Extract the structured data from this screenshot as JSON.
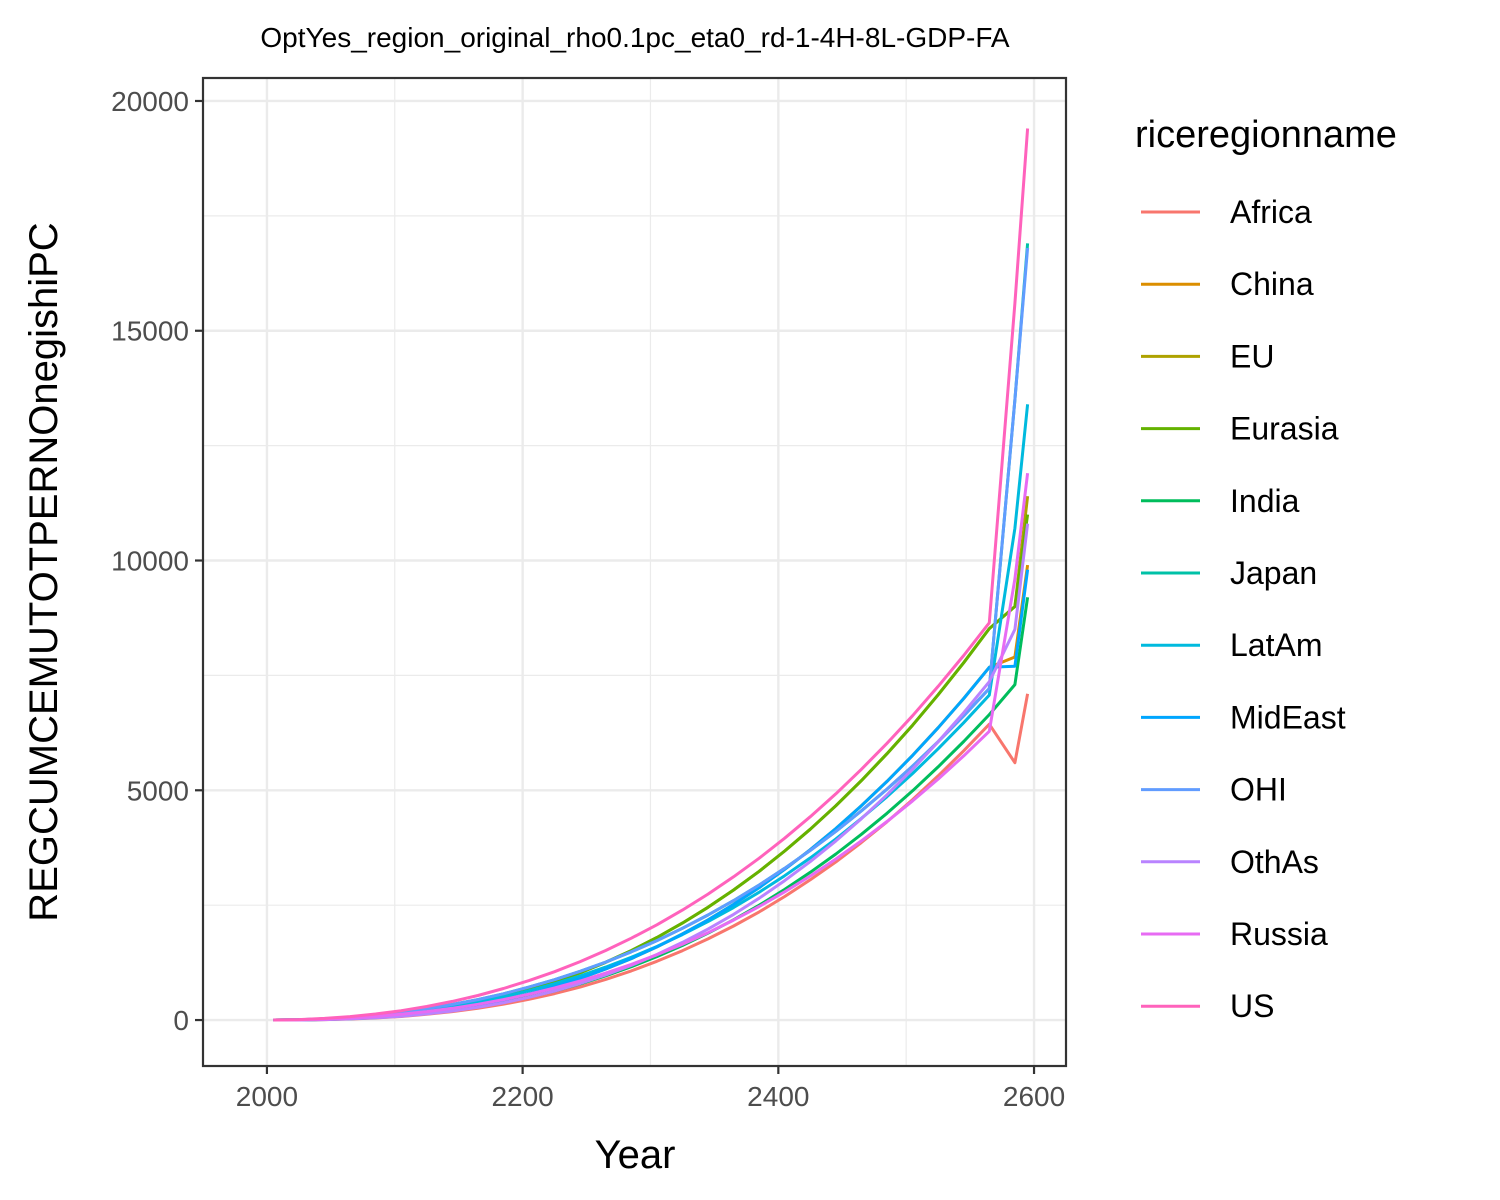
{
  "chart_data": {
    "type": "line",
    "title": "OptYes_region_original_rho0.1pc_eta0_rd-1-4H-8L-GDP-FA",
    "xlabel": "Year",
    "ylabel": "REGCUMCEMUTOTPERNOnegishiPC",
    "xlim": [
      1950,
      2625
    ],
    "ylim": [
      -1000,
      20500
    ],
    "x_ticks": [
      2000,
      2200,
      2400,
      2600
    ],
    "y_ticks": [
      0,
      5000,
      10000,
      15000,
      20000
    ],
    "grid": true,
    "legend_title": "riceregionname",
    "legend_position": "right",
    "x": [
      2005,
      2025,
      2045,
      2065,
      2085,
      2105,
      2125,
      2145,
      2165,
      2185,
      2205,
      2225,
      2245,
      2265,
      2285,
      2305,
      2325,
      2345,
      2365,
      2385,
      2405,
      2425,
      2445,
      2465,
      2485,
      2505,
      2525,
      2545,
      2565,
      2585,
      2595
    ],
    "series": [
      {
        "name": "Africa",
        "color": "#F8766D",
        "values": [
          0,
          2,
          9,
          22,
          45,
          78,
          124,
          183,
          256,
          345,
          451,
          576,
          720,
          884,
          1070,
          1278,
          1510,
          1766,
          2047,
          2354,
          2689,
          3051,
          3442,
          3863,
          4314,
          4797,
          5312,
          5859,
          6439,
          5600,
          7100
        ]
      },
      {
        "name": "China",
        "color": "#DB8E00",
        "values": [
          0,
          3,
          13,
          31,
          60,
          102,
          160,
          234,
          326,
          438,
          572,
          728,
          907,
          1110,
          1338,
          1592,
          1872,
          2180,
          2517,
          2883,
          3280,
          3708,
          4169,
          4664,
          5193,
          5758,
          6359,
          6998,
          7676,
          7900,
          9900
        ]
      },
      {
        "name": "EU",
        "color": "#AEA200",
        "values": [
          0,
          4,
          15,
          37,
          71,
          120,
          187,
          272,
          377,
          504,
          654,
          829,
          1030,
          1257,
          1512,
          1796,
          2110,
          2454,
          2829,
          3237,
          3678,
          4153,
          4664,
          5211,
          5795,
          6416,
          7077,
          7777,
          8518,
          9000,
          11400
        ]
      },
      {
        "name": "Eurasia",
        "color": "#64B200",
        "values": [
          0,
          4,
          15,
          37,
          71,
          120,
          187,
          272,
          377,
          504,
          654,
          829,
          1030,
          1257,
          1512,
          1796,
          2110,
          2454,
          2829,
          3237,
          3678,
          4153,
          4664,
          5211,
          5795,
          6416,
          7077,
          7777,
          8518,
          9000,
          11000
        ]
      },
      {
        "name": "India",
        "color": "#00BD5C",
        "values": [
          0,
          3,
          12,
          28,
          54,
          91,
          142,
          207,
          287,
          384,
          499,
          633,
          787,
          963,
          1160,
          1380,
          1623,
          1890,
          2182,
          2500,
          2844,
          3215,
          3614,
          4042,
          4500,
          4989,
          5509,
          6061,
          6646,
          7300,
          9200
        ]
      },
      {
        "name": "Japan",
        "color": "#00C1A7",
        "values": [
          0,
          8,
          29,
          62,
          109,
          170,
          246,
          338,
          446,
          572,
          716,
          878,
          1060,
          1262,
          1485,
          1729,
          1996,
          2286,
          2600,
          2938,
          3302,
          3692,
          4108,
          4553,
          5025,
          5527,
          6058,
          6621,
          7215,
          13500,
          16900
        ]
      },
      {
        "name": "LatAm",
        "color": "#00BADE",
        "values": [
          0,
          6,
          22,
          49,
          89,
          142,
          209,
          291,
          390,
          505,
          638,
          790,
          961,
          1153,
          1366,
          1601,
          1860,
          2142,
          2449,
          2782,
          3141,
          3528,
          3943,
          4387,
          4861,
          5366,
          5902,
          6470,
          7072,
          10700,
          13400
        ]
      },
      {
        "name": "MidEast",
        "color": "#00A6FF",
        "values": [
          0,
          3,
          13,
          31,
          60,
          102,
          160,
          234,
          326,
          438,
          572,
          728,
          907,
          1110,
          1338,
          1592,
          1872,
          2180,
          2517,
          2883,
          3280,
          3708,
          4169,
          4664,
          5193,
          5758,
          6359,
          6998,
          7676,
          7700,
          9800
        ]
      },
      {
        "name": "OHI",
        "color": "#619CFF",
        "values": [
          0,
          8,
          29,
          62,
          109,
          170,
          246,
          338,
          446,
          572,
          716,
          878,
          1060,
          1262,
          1485,
          1729,
          1996,
          2286,
          2600,
          2938,
          3302,
          3692,
          4108,
          4553,
          5025,
          5527,
          6058,
          6621,
          7215,
          13500,
          16800
        ]
      },
      {
        "name": "OthAs",
        "color": "#B983FF",
        "values": [
          0,
          2,
          10,
          24,
          48,
          84,
          133,
          197,
          278,
          376,
          494,
          633,
          795,
          980,
          1190,
          1426,
          1689,
          1980,
          2300,
          2651,
          3034,
          3449,
          3898,
          4382,
          4902,
          5459,
          6054,
          6688,
          7362,
          8500,
          10800
        ]
      },
      {
        "name": "Russia",
        "color": "#E76BF3",
        "values": [
          0,
          5,
          19,
          43,
          78,
          124,
          183,
          256,
          343,
          445,
          563,
          698,
          850,
          1021,
          1210,
          1420,
          1650,
          1901,
          2175,
          2471,
          2791,
          3135,
          3504,
          3899,
          4320,
          4768,
          5244,
          5749,
          6283,
          9600,
          11900
        ]
      },
      {
        "name": "US",
        "color": "#FF62BC",
        "values": [
          0,
          10,
          35,
          75,
          131,
          204,
          295,
          405,
          535,
          686,
          858,
          1053,
          1271,
          1513,
          1780,
          2073,
          2393,
          2741,
          3117,
          3522,
          3958,
          4425,
          4924,
          5456,
          6022,
          6623,
          7260,
          7933,
          8644,
          15600,
          19400
        ]
      }
    ]
  }
}
